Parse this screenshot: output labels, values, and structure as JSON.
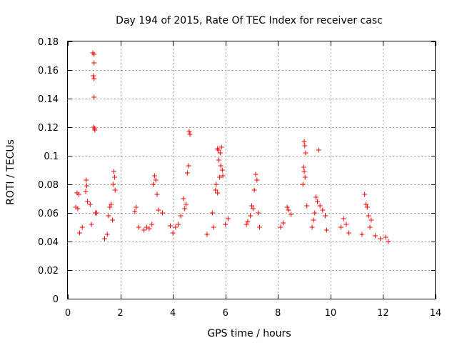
{
  "chart_data": {
    "type": "scatter",
    "title": "Day 194 of 2015, Rate Of TEC Index for receiver casc",
    "xlabel": "GPS time / hours",
    "ylabel": "ROTI / TECUs",
    "xlim": [
      0,
      14
    ],
    "ylim": [
      0,
      0.18
    ],
    "x_ticks": [
      0,
      2,
      4,
      6,
      8,
      10,
      12,
      14
    ],
    "y_ticks": [
      0,
      0.02,
      0.04,
      0.06,
      0.08,
      0.1,
      0.12,
      0.14,
      0.16,
      0.18
    ],
    "x_tick_labels": [
      "0",
      "2",
      "4",
      "6",
      "8",
      "10",
      "12",
      "14"
    ],
    "y_tick_labels": [
      "0",
      "0.02",
      "0.04",
      "0.06",
      "0.08",
      "0.1",
      "0.12",
      "0.14",
      "0.16",
      "0.18"
    ],
    "grid": true,
    "marker": "+",
    "marker_color": "#ff0000",
    "series": [
      {
        "name": "ROTI",
        "points": [
          [
            0.95,
            0.172
          ],
          [
            1.0,
            0.171
          ],
          [
            1.0,
            0.165
          ],
          [
            0.97,
            0.156
          ],
          [
            1.0,
            0.154
          ],
          [
            1.0,
            0.141
          ],
          [
            0.98,
            0.12
          ],
          [
            1.02,
            0.119
          ],
          [
            1.03,
            0.118
          ],
          [
            0.35,
            0.074
          ],
          [
            0.42,
            0.073
          ],
          [
            0.3,
            0.064
          ],
          [
            0.38,
            0.063
          ],
          [
            0.7,
            0.083
          ],
          [
            0.72,
            0.079
          ],
          [
            0.68,
            0.075
          ],
          [
            0.75,
            0.068
          ],
          [
            0.85,
            0.066
          ],
          [
            1.05,
            0.06
          ],
          [
            1.1,
            0.06
          ],
          [
            0.9,
            0.052
          ],
          [
            0.55,
            0.05
          ],
          [
            0.45,
            0.046
          ],
          [
            1.75,
            0.089
          ],
          [
            1.78,
            0.085
          ],
          [
            1.72,
            0.08
          ],
          [
            1.8,
            0.076
          ],
          [
            1.65,
            0.066
          ],
          [
            1.6,
            0.064
          ],
          [
            1.55,
            0.058
          ],
          [
            1.7,
            0.055
          ],
          [
            1.5,
            0.045
          ],
          [
            1.4,
            0.042
          ],
          [
            2.6,
            0.064
          ],
          [
            2.55,
            0.061
          ],
          [
            2.7,
            0.05
          ],
          [
            2.9,
            0.048
          ],
          [
            3.0,
            0.05
          ],
          [
            3.3,
            0.086
          ],
          [
            3.35,
            0.083
          ],
          [
            3.25,
            0.08
          ],
          [
            3.4,
            0.073
          ],
          [
            3.45,
            0.062
          ],
          [
            3.6,
            0.06
          ],
          [
            3.2,
            0.052
          ],
          [
            3.1,
            0.049
          ],
          [
            4.45,
            0.063
          ],
          [
            4.5,
            0.066
          ],
          [
            4.4,
            0.07
          ],
          [
            4.55,
            0.088
          ],
          [
            4.6,
            0.093
          ],
          [
            4.62,
            0.117
          ],
          [
            4.65,
            0.115
          ],
          [
            4.3,
            0.058
          ],
          [
            4.2,
            0.052
          ],
          [
            4.1,
            0.05
          ],
          [
            3.9,
            0.051
          ],
          [
            4.0,
            0.046
          ],
          [
            5.7,
            0.105
          ],
          [
            5.72,
            0.104
          ],
          [
            5.8,
            0.102
          ],
          [
            5.85,
            0.106
          ],
          [
            5.75,
            0.097
          ],
          [
            5.82,
            0.093
          ],
          [
            5.88,
            0.09
          ],
          [
            5.9,
            0.086
          ],
          [
            5.78,
            0.085
          ],
          [
            5.65,
            0.08
          ],
          [
            5.62,
            0.076
          ],
          [
            5.7,
            0.074
          ],
          [
            5.5,
            0.06
          ],
          [
            5.55,
            0.05
          ],
          [
            6.1,
            0.056
          ],
          [
            6.0,
            0.052
          ],
          [
            5.3,
            0.045
          ],
          [
            7.15,
            0.087
          ],
          [
            7.2,
            0.083
          ],
          [
            7.1,
            0.076
          ],
          [
            7.0,
            0.065
          ],
          [
            7.05,
            0.063
          ],
          [
            6.95,
            0.058
          ],
          [
            7.25,
            0.06
          ],
          [
            6.85,
            0.054
          ],
          [
            6.8,
            0.052
          ],
          [
            7.3,
            0.05
          ],
          [
            8.35,
            0.064
          ],
          [
            8.4,
            0.062
          ],
          [
            8.5,
            0.059
          ],
          [
            8.2,
            0.053
          ],
          [
            8.1,
            0.05
          ],
          [
            9.0,
            0.11
          ],
          [
            9.02,
            0.107
          ],
          [
            9.05,
            0.102
          ],
          [
            8.98,
            0.092
          ],
          [
            9.0,
            0.089
          ],
          [
            9.03,
            0.085
          ],
          [
            8.95,
            0.08
          ],
          [
            9.1,
            0.065
          ],
          [
            9.55,
            0.104
          ],
          [
            9.45,
            0.071
          ],
          [
            9.5,
            0.068
          ],
          [
            9.6,
            0.065
          ],
          [
            9.7,
            0.062
          ],
          [
            9.4,
            0.06
          ],
          [
            9.8,
            0.058
          ],
          [
            9.35,
            0.055
          ],
          [
            9.3,
            0.05
          ],
          [
            9.85,
            0.048
          ],
          [
            10.5,
            0.056
          ],
          [
            10.6,
            0.052
          ],
          [
            10.4,
            0.05
          ],
          [
            10.7,
            0.046
          ],
          [
            11.3,
            0.073
          ],
          [
            11.35,
            0.066
          ],
          [
            11.4,
            0.064
          ],
          [
            11.45,
            0.058
          ],
          [
            11.55,
            0.055
          ],
          [
            11.5,
            0.05
          ],
          [
            11.2,
            0.045
          ],
          [
            11.7,
            0.044
          ],
          [
            11.9,
            0.042
          ],
          [
            12.1,
            0.043
          ],
          [
            12.2,
            0.04
          ]
        ]
      }
    ]
  }
}
